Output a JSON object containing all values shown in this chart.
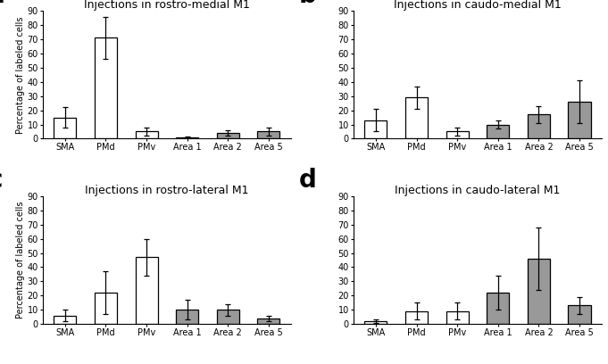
{
  "panels": [
    {
      "label": "a",
      "title": "Injections in rostro-medial M1",
      "categories": [
        "SMA",
        "PMd",
        "PMv",
        "Area 1",
        "Area 2",
        "Area 5"
      ],
      "values": [
        15,
        71,
        5,
        1,
        4,
        5
      ],
      "errors": [
        7,
        15,
        3,
        0.5,
        2,
        3
      ],
      "colors": [
        "white",
        "white",
        "white",
        "#999999",
        "#999999",
        "#999999"
      ]
    },
    {
      "label": "b",
      "title": "Injections in caudo-medial M1",
      "categories": [
        "SMA",
        "PMd",
        "PMv",
        "Area 1",
        "Area 2",
        "Area 5"
      ],
      "values": [
        13,
        29,
        5,
        10,
        17,
        26
      ],
      "errors": [
        8,
        8,
        3,
        3,
        6,
        15
      ],
      "colors": [
        "white",
        "white",
        "white",
        "#999999",
        "#999999",
        "#999999"
      ]
    },
    {
      "label": "c",
      "title": "Injections in rostro-lateral M1",
      "categories": [
        "SMA",
        "PMd",
        "PMv",
        "Area 1",
        "Area 2",
        "Area 5"
      ],
      "values": [
        6,
        22,
        47,
        10,
        10,
        4
      ],
      "errors": [
        4,
        15,
        13,
        7,
        4,
        2
      ],
      "colors": [
        "white",
        "white",
        "white",
        "#999999",
        "#999999",
        "#999999"
      ]
    },
    {
      "label": "d",
      "title": "Injections in caudo-lateral M1",
      "categories": [
        "SMA",
        "PMd",
        "PMv",
        "Area 1",
        "Area 2",
        "Area 5"
      ],
      "values": [
        2,
        9,
        9,
        22,
        46,
        13
      ],
      "errors": [
        1,
        6,
        6,
        12,
        22,
        6
      ],
      "colors": [
        "white",
        "white",
        "white",
        "#999999",
        "#999999",
        "#999999"
      ]
    }
  ],
  "ylabel": "Percentage of labeled cells",
  "ylim": [
    0,
    90
  ],
  "yticks": [
    0,
    10,
    20,
    30,
    40,
    50,
    60,
    70,
    80,
    90
  ],
  "bar_width": 0.55,
  "edgecolor": "black",
  "background": "white",
  "label_fontsize": 20,
  "title_fontsize": 9,
  "tick_fontsize": 7,
  "ylabel_fontsize": 7
}
